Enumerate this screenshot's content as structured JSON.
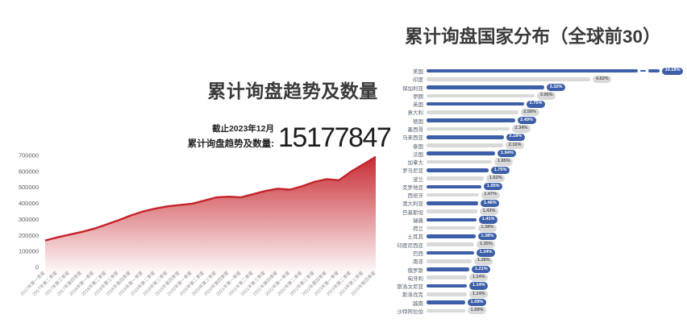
{
  "chart_data": [
    {
      "type": "area",
      "title": "累计询盘趋势及数量",
      "annotations": {
        "as_of": "截止2023年12月",
        "total_label": "累计询盘趋势及数量:",
        "total_value": "15177847"
      },
      "x": [
        "2017年第一季度",
        "2017年第二季度",
        "2017年第三季度",
        "2017年第四季度",
        "2018年第一季度",
        "2018年第二季度",
        "2018年第三季度",
        "2018年第四季度",
        "2019年第一季度",
        "2019年第二季度",
        "2019年第三季度",
        "2019年第四季度",
        "2020年第一季度",
        "2020年第二季度",
        "2020年第三季度",
        "2020年第四季度",
        "2021年第一季度",
        "2021年第二季度",
        "2021年第三季度",
        "2021年第四季度",
        "2022年第一季度",
        "2022年第二季度",
        "2022年第三季度",
        "2022年第四季度",
        "2023年第一季度",
        "2023年第二季度",
        "2023年第三季度",
        "2023年第四季度"
      ],
      "values": [
        168000,
        188000,
        205000,
        222000,
        242000,
        268000,
        295000,
        325000,
        350000,
        368000,
        382000,
        390000,
        398000,
        418000,
        438000,
        442000,
        438000,
        458000,
        478000,
        492000,
        486000,
        508000,
        535000,
        552000,
        545000,
        600000,
        645000,
        692000
      ],
      "ylim": [
        0,
        700000
      ],
      "yticks": [
        "0",
        "100000",
        "200000",
        "300000",
        "400000",
        "500000",
        "600000",
        "700000"
      ],
      "colors": {
        "line": "#c4232a",
        "area_top": "#c4232a",
        "area_bottom": "#ffffff",
        "tick_text": "#5a5a5a",
        "x_label_text": "#9a8f8f"
      }
    },
    {
      "type": "bar",
      "orientation": "horizontal",
      "title": "累计询盘国家分布（全球前30）",
      "categories": [
        "美国",
        "印度",
        "保加利亚",
        "伊朗",
        "英国",
        "意大利",
        "德国",
        "墨西哥",
        "马来西亚",
        "泰国",
        "法国",
        "加拿大",
        "罗马尼亚",
        "波兰",
        "克罗地亚",
        "西班牙",
        "澳大利亚",
        "巴基斯坦",
        "瑞典",
        "荷兰",
        "土耳其",
        "印度尼西亚",
        "巴西",
        "南非",
        "俄罗斯",
        "匈牙利",
        "斯洛文尼亚",
        "斯洛伐克",
        "越南",
        "沙特阿拉伯"
      ],
      "values": [
        10.18,
        4.62,
        3.32,
        3.05,
        2.75,
        2.58,
        2.49,
        2.34,
        2.18,
        2.16,
        1.94,
        1.85,
        1.75,
        1.62,
        1.55,
        1.47,
        1.46,
        1.43,
        1.41,
        1.38,
        1.38,
        1.35,
        1.34,
        1.28,
        1.21,
        1.14,
        1.14,
        1.14,
        1.09,
        1.09
      ],
      "value_labels": [
        "10.18%",
        "4.62%",
        "3.32%",
        "3.05%",
        "2.75%",
        "2.58%",
        "2.49%",
        "2.34%",
        "2.18%",
        "2.16%",
        "1.94%",
        "1.85%",
        "1.75%",
        "1.62%",
        "1.55%",
        "1.47%",
        "1.46%",
        "1.43%",
        "1.41%",
        "1.38%",
        "1.38%",
        "1.35%",
        "1.34%",
        "1.28%",
        "1.21%",
        "1.14%",
        "1.14%",
        "1.14%",
        "1.09%",
        "1.09%"
      ],
      "axis_break_on_first_bar": true,
      "colors": {
        "bar_odd": "#3d5fa8",
        "bar_even": "#d9d9d9",
        "badge_text_odd": "#ffffff",
        "badge_text_even": "#5a5a5a",
        "label_text": "#55606e"
      }
    }
  ]
}
